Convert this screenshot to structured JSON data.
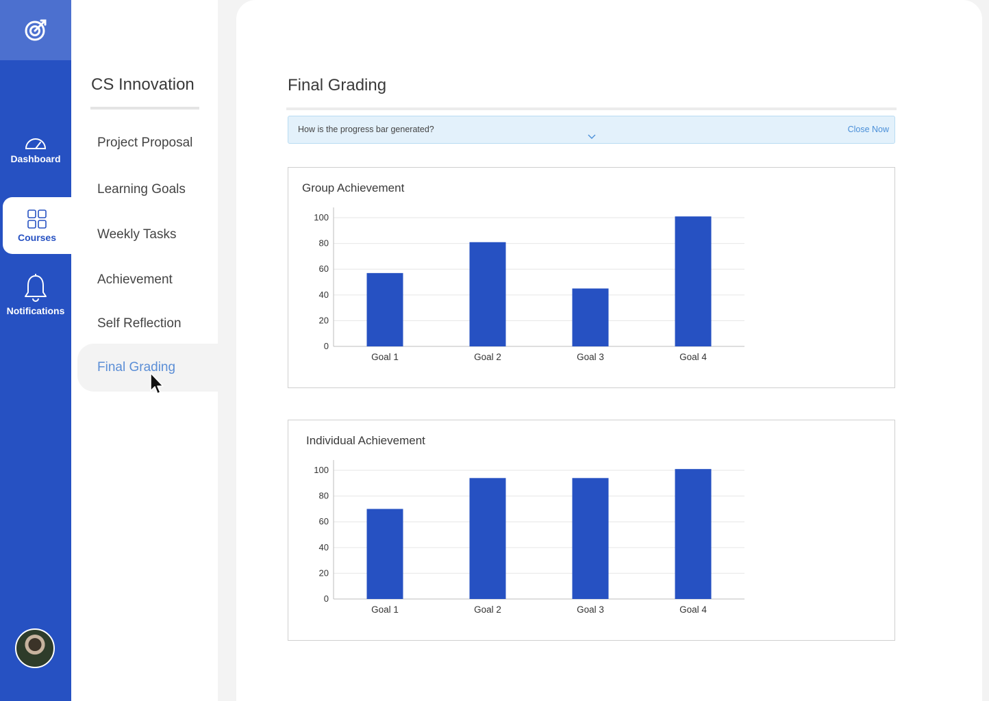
{
  "nav": {
    "logo_icon": "target-icon",
    "items": [
      {
        "label": "Dashboard",
        "icon": "gauge-icon"
      },
      {
        "label": "Courses",
        "icon": "grid-icon",
        "active": true
      },
      {
        "label": "Notifications",
        "icon": "bell-icon"
      }
    ]
  },
  "submenu": {
    "course_title": "CS Innovation",
    "items": [
      {
        "label": "Project Proposal"
      },
      {
        "label": "Learning Goals"
      },
      {
        "label": "Weekly Tasks"
      },
      {
        "label": "Achievement"
      },
      {
        "label": "Self Reflection"
      },
      {
        "label": "Final Grading",
        "active": true
      }
    ]
  },
  "page": {
    "title": "Final Grading",
    "banner": {
      "question": "How is the progress bar generated?",
      "close_label": "Close Now"
    }
  },
  "colors": {
    "accent": "#2651c2",
    "bar": "#2651c2",
    "active_menu": "#5b8ed6",
    "link": "#4a8fd8"
  },
  "chart_data": [
    {
      "type": "bar",
      "title": "Group Achievement",
      "categories": [
        "Goal 1",
        "Goal 2",
        "Goal 3",
        "Goal 4"
      ],
      "values": [
        57,
        81,
        45,
        101
      ],
      "yticks": [
        0,
        20,
        40,
        60,
        80,
        100
      ],
      "ylim": [
        0,
        108
      ],
      "grid": true
    },
    {
      "type": "bar",
      "title": "Individual Achievement",
      "categories": [
        "Goal 1",
        "Goal 2",
        "Goal 3",
        "Goal 4"
      ],
      "values": [
        70,
        94,
        94,
        101
      ],
      "yticks": [
        0,
        20,
        40,
        60,
        80,
        100
      ],
      "ylim": [
        0,
        108
      ],
      "grid": true
    }
  ]
}
